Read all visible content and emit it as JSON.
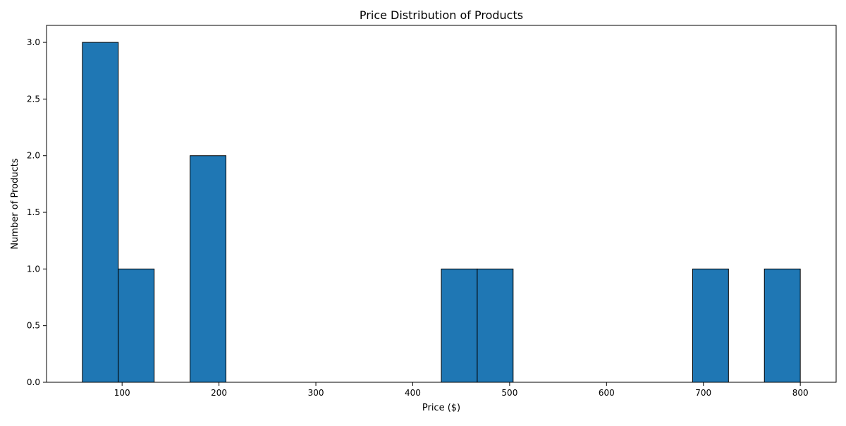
{
  "chart_data": {
    "type": "bar",
    "title": "Price Distribution of Products",
    "xlabel": "Price ($)",
    "ylabel": "Number of Products",
    "bin_edges": [
      59.0,
      96.05,
      133.1,
      170.15,
      207.2,
      244.25,
      281.3,
      318.35,
      355.4,
      392.45,
      429.5,
      466.55,
      503.6,
      540.65,
      577.7,
      614.75,
      651.8,
      688.85,
      725.9,
      762.95,
      800.0
    ],
    "counts": [
      3,
      1,
      0,
      2,
      0,
      0,
      0,
      0,
      0,
      0,
      1,
      1,
      0,
      0,
      0,
      0,
      0,
      1,
      0,
      1
    ],
    "xlim": [
      22.0,
      837.0
    ],
    "ylim": [
      0,
      3.15
    ],
    "xticks": [
      100,
      200,
      300,
      400,
      500,
      600,
      700,
      800
    ],
    "xtick_labels": [
      "100",
      "200",
      "300",
      "400",
      "500",
      "600",
      "700",
      "800"
    ],
    "yticks": [
      0,
      0.5,
      1.0,
      1.5,
      2.0,
      2.5,
      3.0
    ],
    "ytick_labels": [
      "0.0",
      "0.5",
      "1.0",
      "1.5",
      "2.0",
      "2.5",
      "3.0"
    ],
    "bar_color": "#1f77b4",
    "edge_color": "#000000",
    "grid": false
  }
}
